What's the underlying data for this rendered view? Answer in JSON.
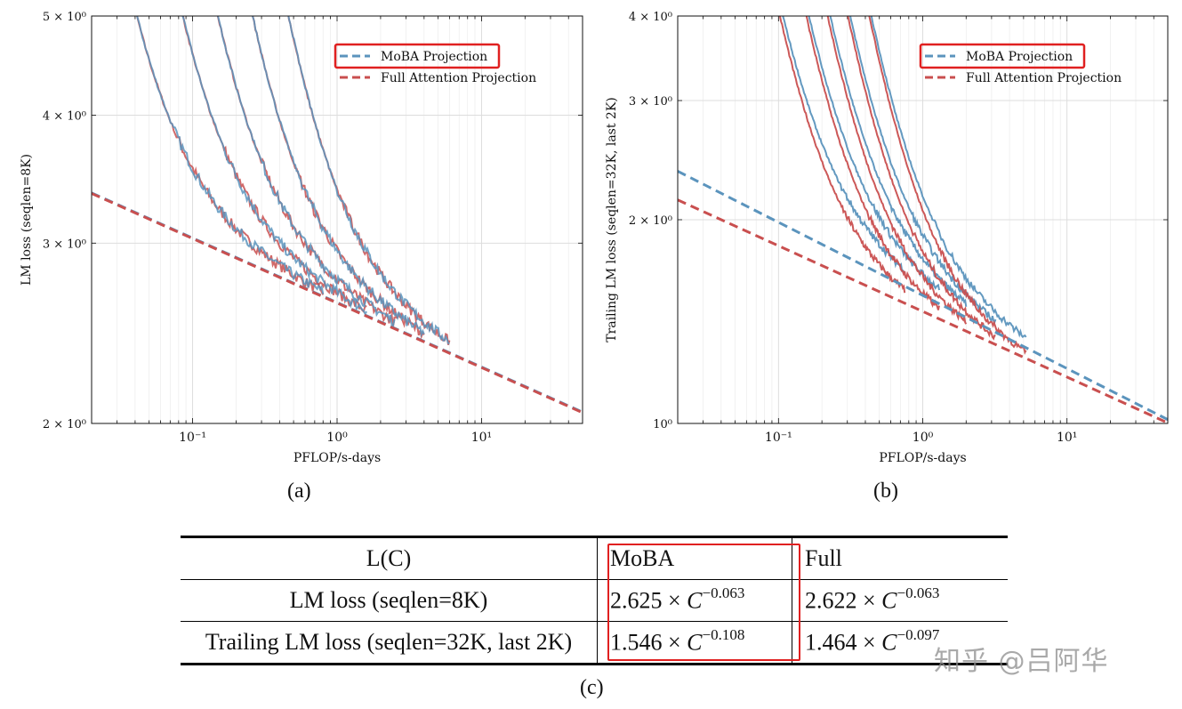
{
  "chart_data": [
    {
      "type": "line",
      "panel": "(a)",
      "xlabel": "PFLOP/s-days",
      "ylabel": "LM loss (seqlen=8K)",
      "xscale": "log",
      "yscale": "log",
      "xlim": [
        0.02,
        50
      ],
      "ylim": [
        2,
        5
      ],
      "x_ticks": [
        0.1,
        1,
        10
      ],
      "x_tick_labels": [
        "10⁻¹",
        "10⁰",
        "10¹"
      ],
      "y_ticks": [
        2,
        3,
        4,
        5
      ],
      "y_tick_labels": [
        "2 × 10⁰",
        "3 × 10⁰",
        "4 × 10⁰",
        "5 × 10⁰"
      ],
      "legend": [
        "MoBA Projection",
        "Full Attention Projection"
      ],
      "legend_position": "top-right",
      "projections": [
        {
          "name": "MoBA Projection",
          "coef": 2.625,
          "exp": -0.063,
          "color": "#5b94bd"
        },
        {
          "name": "Full Attention Projection",
          "coef": 2.622,
          "exp": -0.063,
          "color": "#c94f4f"
        }
      ],
      "curves": [
        {
          "x0": 0.025,
          "x_end": 0.8,
          "tail": 4.0,
          "k": 1.4
        },
        {
          "x0": 0.055,
          "x_end": 1.6,
          "tail": 4.0,
          "k": 1.4
        },
        {
          "x0": 0.1,
          "x_end": 2.5,
          "tail": 4.0,
          "k": 1.4
        },
        {
          "x0": 0.18,
          "x_end": 4.0,
          "tail": 4.0,
          "k": 1.4
        },
        {
          "x0": 0.33,
          "x_end": 6.0,
          "tail": 4.0,
          "k": 1.4
        }
      ]
    },
    {
      "type": "line",
      "panel": "(b)",
      "xlabel": "PFLOP/s-days",
      "ylabel": "Trailing LM loss (seqlen=32K, last 2K)",
      "xscale": "log",
      "yscale": "log",
      "xlim": [
        0.02,
        50
      ],
      "ylim": [
        1,
        4
      ],
      "x_ticks": [
        0.1,
        1,
        10
      ],
      "x_tick_labels": [
        "10⁻¹",
        "10⁰",
        "10¹"
      ],
      "y_ticks": [
        1,
        2,
        3,
        4
      ],
      "y_tick_labels": [
        "10⁰",
        "2 × 10⁰",
        "3 × 10⁰",
        "4 × 10⁰"
      ],
      "legend": [
        "MoBA Projection",
        "Full Attention Projection"
      ],
      "legend_position": "top-right",
      "projections": [
        {
          "name": "MoBA Projection",
          "coef": 1.546,
          "exp": -0.108,
          "color": "#5b94bd"
        },
        {
          "name": "Full Attention Projection",
          "coef": 1.464,
          "exp": -0.097,
          "color": "#c94f4f"
        }
      ],
      "curves": [
        {
          "x0": 0.09,
          "x_end": 0.75,
          "tail": 3.0,
          "k": 1.6
        },
        {
          "x0": 0.14,
          "x_end": 1.3,
          "tail": 3.0,
          "k": 1.6
        },
        {
          "x0": 0.2,
          "x_end": 2.0,
          "tail": 3.0,
          "k": 1.6
        },
        {
          "x0": 0.28,
          "x_end": 3.2,
          "tail": 3.0,
          "k": 1.6
        },
        {
          "x0": 0.4,
          "x_end": 5.2,
          "tail": 3.0,
          "k": 1.6
        }
      ]
    }
  ],
  "captions": {
    "a": "(a)",
    "b": "(b)",
    "c": "(c)"
  },
  "table": {
    "header": {
      "label": "L(C)",
      "moba": "MoBA",
      "full": "Full"
    },
    "rows": [
      {
        "label": "LM loss (seqlen=8K)",
        "moba_coef": "2.625",
        "moba_exp": "−0.063",
        "full_coef": "2.622",
        "full_exp": "−0.063"
      },
      {
        "label": "Trailing LM loss (seqlen=32K, last 2K)",
        "moba_coef": "1.546",
        "moba_exp": "−0.108",
        "full_coef": "1.464",
        "full_exp": "−0.097"
      }
    ],
    "times": "×",
    "var": "C"
  },
  "watermark": "知乎 @吕阿华",
  "colors": {
    "moba": "#5b94bd",
    "full": "#c94f4f",
    "highlight": "#e02020"
  }
}
